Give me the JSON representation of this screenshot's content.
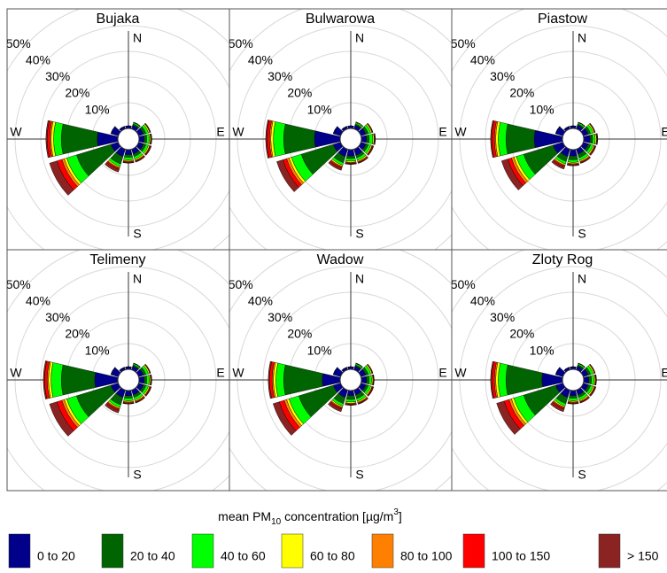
{
  "chart_data": [
    {
      "type": "rose",
      "title": "Bujaka",
      "categories": [
        "N",
        null,
        null,
        "E",
        null,
        null,
        "S",
        null,
        null,
        "W",
        null,
        null
      ],
      "rlim": [
        0,
        50
      ],
      "rticks": [
        {
          "value": 10,
          "label": "10%"
        },
        {
          "value": 20,
          "label": "20%"
        },
        {
          "value": 30,
          "label": "30%"
        },
        {
          "value": 40,
          "label": "40%"
        },
        {
          "value": 50,
          "label": "50%"
        }
      ],
      "series": [
        {
          "name": "0 to 20",
          "color": "#00008b",
          "values": [
            1,
            1.5,
            2,
            2,
            2,
            2,
            2,
            3,
            3,
            8,
            3,
            1
          ]
        },
        {
          "name": "20 to 40",
          "color": "#006400",
          "values": [
            0,
            0.5,
            1,
            1,
            1,
            1,
            1,
            3,
            14,
            14,
            0,
            0
          ]
        },
        {
          "name": "40 to 60",
          "color": "#00ff00",
          "values": [
            0,
            0.5,
            1,
            1,
            1,
            1,
            1,
            1,
            4,
            3,
            0,
            0
          ]
        },
        {
          "name": "60 to 80",
          "color": "#ffff00",
          "values": [
            0,
            0.2,
            0.5,
            0.5,
            0.5,
            0.5,
            0.5,
            0.5,
            1,
            1,
            0,
            0
          ]
        },
        {
          "name": "80 to 100",
          "color": "#ff8000",
          "values": [
            0,
            0,
            0.2,
            0.2,
            0.2,
            0.3,
            0.3,
            0.3,
            1,
            0.5,
            0,
            0
          ]
        },
        {
          "name": "100 to 150",
          "color": "#ff0000",
          "values": [
            0,
            0,
            0.1,
            0.2,
            0.3,
            0.3,
            0.3,
            0.5,
            2,
            1,
            0,
            0
          ]
        },
        {
          "name": "> 150",
          "color": "#8b2323",
          "values": [
            0,
            0,
            0.1,
            0.1,
            0.2,
            0.2,
            0.2,
            1,
            3,
            0.5,
            0,
            0
          ]
        }
      ]
    },
    {
      "type": "rose",
      "title": "Bulwarowa",
      "categories": [
        "N",
        null,
        null,
        "E",
        null,
        null,
        "S",
        null,
        null,
        "W",
        null,
        null
      ],
      "rlim": [
        0,
        50
      ],
      "rticks": [
        {
          "value": 10,
          "label": "10%"
        },
        {
          "value": 20,
          "label": "20%"
        },
        {
          "value": 30,
          "label": "30%"
        },
        {
          "value": 40,
          "label": "40%"
        },
        {
          "value": 50,
          "label": "50%"
        }
      ],
      "series": [
        {
          "name": "0 to 20",
          "color": "#00008b",
          "values": [
            1,
            1.5,
            2,
            2,
            2,
            2.5,
            2.5,
            3,
            3,
            10,
            3,
            1
          ]
        },
        {
          "name": "20 to 40",
          "color": "#006400",
          "values": [
            0,
            0.5,
            1,
            1,
            1,
            1,
            1,
            2.5,
            13,
            12,
            0,
            0
          ]
        },
        {
          "name": "40 to 60",
          "color": "#00ff00",
          "values": [
            0,
            0.5,
            1,
            1.5,
            1,
            1,
            1,
            1,
            4,
            4,
            0,
            0
          ]
        },
        {
          "name": "60 to 80",
          "color": "#ffff00",
          "values": [
            0,
            0.3,
            0.5,
            0.5,
            0.5,
            0.5,
            0.5,
            0.5,
            1,
            1,
            0,
            0
          ]
        },
        {
          "name": "80 to 100",
          "color": "#ff8000",
          "values": [
            0,
            0,
            0.2,
            0.2,
            0.2,
            0.3,
            0.3,
            0.3,
            1,
            0.5,
            0,
            0
          ]
        },
        {
          "name": "100 to 150",
          "color": "#ff0000",
          "values": [
            0,
            0,
            0.1,
            0.2,
            0.3,
            0.3,
            0.3,
            0.5,
            1.5,
            1,
            0,
            0
          ]
        },
        {
          "name": "> 150",
          "color": "#8b2323",
          "values": [
            0,
            0,
            0.1,
            0.1,
            0.2,
            0.2,
            0.2,
            0.8,
            2.5,
            0.5,
            0,
            0
          ]
        }
      ]
    },
    {
      "type": "rose",
      "title": "Piastow",
      "categories": [
        "N",
        null,
        null,
        "E",
        null,
        null,
        "S",
        null,
        null,
        "W",
        null,
        null
      ],
      "rlim": [
        0,
        50
      ],
      "rticks": [
        {
          "value": 10,
          "label": "10%"
        },
        {
          "value": 20,
          "label": "20%"
        },
        {
          "value": 30,
          "label": "30%"
        },
        {
          "value": 40,
          "label": "40%"
        },
        {
          "value": 50,
          "label": "50%"
        }
      ],
      "series": [
        {
          "name": "0 to 20",
          "color": "#00008b",
          "values": [
            1,
            1.5,
            2,
            2.5,
            2,
            2,
            2.5,
            3,
            4,
            11,
            3,
            1
          ]
        },
        {
          "name": "20 to 40",
          "color": "#006400",
          "values": [
            0,
            0.5,
            1,
            1,
            1,
            1.5,
            1.5,
            2,
            12,
            11,
            0,
            0
          ]
        },
        {
          "name": "40 to 60",
          "color": "#00ff00",
          "values": [
            0,
            0.5,
            1,
            1,
            1,
            1,
            1,
            1,
            3,
            3,
            0,
            0
          ]
        },
        {
          "name": "60 to 80",
          "color": "#ffff00",
          "values": [
            0,
            0.2,
            0.5,
            0.5,
            0.5,
            0.5,
            0.5,
            0.5,
            1,
            1,
            0,
            0
          ]
        },
        {
          "name": "80 to 100",
          "color": "#ff8000",
          "values": [
            0,
            0,
            0.2,
            0.2,
            0.2,
            0.3,
            0.3,
            0.3,
            1,
            0.5,
            0,
            0
          ]
        },
        {
          "name": "100 to 150",
          "color": "#ff0000",
          "values": [
            0,
            0,
            0.1,
            0.2,
            0.3,
            0.3,
            0.3,
            0.5,
            1.5,
            1,
            0,
            0
          ]
        },
        {
          "name": "> 150",
          "color": "#8b2323",
          "values": [
            0,
            0,
            0.1,
            0.1,
            0.2,
            0.2,
            0.2,
            0.8,
            2.5,
            0.5,
            0,
            0
          ]
        }
      ]
    },
    {
      "type": "rose",
      "title": "Telimeny",
      "categories": [
        "N",
        null,
        null,
        "E",
        null,
        null,
        "S",
        null,
        null,
        "W",
        null,
        null
      ],
      "rlim": [
        0,
        50
      ],
      "rticks": [
        {
          "value": 10,
          "label": "10%"
        },
        {
          "value": 20,
          "label": "20%"
        },
        {
          "value": 30,
          "label": "30%"
        },
        {
          "value": 40,
          "label": "40%"
        },
        {
          "value": 50,
          "label": "50%"
        }
      ],
      "series": [
        {
          "name": "0 to 20",
          "color": "#00008b",
          "values": [
            1,
            1.5,
            2,
            2,
            2,
            2,
            2,
            3,
            3,
            9,
            3,
            1
          ]
        },
        {
          "name": "20 to 40",
          "color": "#006400",
          "values": [
            0,
            0.5,
            1,
            1,
            1,
            1,
            1,
            3,
            14,
            13,
            0,
            0
          ]
        },
        {
          "name": "40 to 60",
          "color": "#00ff00",
          "values": [
            0,
            0.5,
            1,
            1,
            1,
            1,
            1,
            1,
            4,
            4,
            0,
            0
          ]
        },
        {
          "name": "60 to 80",
          "color": "#ffff00",
          "values": [
            0,
            0.2,
            0.5,
            0.5,
            0.5,
            0.5,
            0.5,
            0.5,
            1,
            1,
            0,
            0
          ]
        },
        {
          "name": "80 to 100",
          "color": "#ff8000",
          "values": [
            0,
            0,
            0.2,
            0.2,
            0.2,
            0.3,
            0.3,
            0.3,
            1,
            0.5,
            0,
            0
          ]
        },
        {
          "name": "100 to 150",
          "color": "#ff0000",
          "values": [
            0,
            0,
            0.1,
            0.2,
            0.3,
            0.3,
            0.3,
            0.5,
            2,
            1,
            0,
            0
          ]
        },
        {
          "name": "> 150",
          "color": "#8b2323",
          "values": [
            0,
            0,
            0.1,
            0.1,
            0.2,
            0.2,
            0.2,
            1,
            3,
            0.5,
            0,
            0
          ]
        }
      ]
    },
    {
      "type": "rose",
      "title": "Wadow",
      "categories": [
        "N",
        null,
        null,
        "E",
        null,
        null,
        "S",
        null,
        null,
        "W",
        null,
        null
      ],
      "rlim": [
        0,
        50
      ],
      "rticks": [
        {
          "value": 10,
          "label": "10%"
        },
        {
          "value": 20,
          "label": "20%"
        },
        {
          "value": 30,
          "label": "30%"
        },
        {
          "value": 40,
          "label": "40%"
        },
        {
          "value": 50,
          "label": "50%"
        }
      ],
      "series": [
        {
          "name": "0 to 20",
          "color": "#00008b",
          "values": [
            1,
            1.5,
            2,
            2,
            2,
            2,
            2,
            3,
            3,
            7,
            3,
            1
          ]
        },
        {
          "name": "20 to 40",
          "color": "#006400",
          "values": [
            0,
            0.5,
            1,
            1,
            1,
            1.5,
            1.5,
            2.5,
            14,
            15,
            0,
            0
          ]
        },
        {
          "name": "40 to 60",
          "color": "#00ff00",
          "values": [
            0,
            0.5,
            1,
            1,
            1,
            1,
            1,
            1,
            4,
            3,
            0,
            0
          ]
        },
        {
          "name": "60 to 80",
          "color": "#ffff00",
          "values": [
            0,
            0.2,
            0.5,
            0.5,
            0.5,
            0.5,
            0.5,
            0.5,
            1,
            1,
            0,
            0
          ]
        },
        {
          "name": "80 to 100",
          "color": "#ff8000",
          "values": [
            0,
            0,
            0.2,
            0.2,
            0.2,
            0.3,
            0.3,
            0.3,
            1,
            0.5,
            0,
            0
          ]
        },
        {
          "name": "100 to 150",
          "color": "#ff0000",
          "values": [
            0,
            0,
            0.1,
            0.2,
            0.3,
            0.3,
            0.3,
            0.5,
            2,
            1,
            0,
            0
          ]
        },
        {
          "name": "> 150",
          "color": "#8b2323",
          "values": [
            0,
            0,
            0.1,
            0.1,
            0.2,
            0.2,
            0.2,
            1,
            2.5,
            0.5,
            0,
            0
          ]
        }
      ]
    },
    {
      "type": "rose",
      "title": "Zloty Rog",
      "categories": [
        "N",
        null,
        null,
        "E",
        null,
        null,
        "S",
        null,
        null,
        "W",
        null,
        null
      ],
      "rlim": [
        0,
        50
      ],
      "rticks": [
        {
          "value": 10,
          "label": "10%"
        },
        {
          "value": 20,
          "label": "20%"
        },
        {
          "value": 30,
          "label": "30%"
        },
        {
          "value": 40,
          "label": "40%"
        },
        {
          "value": 50,
          "label": "50%"
        }
      ],
      "series": [
        {
          "name": "0 to 20",
          "color": "#00008b",
          "values": [
            1,
            1.5,
            2,
            2,
            2,
            2,
            2,
            3,
            3,
            8,
            3,
            1
          ]
        },
        {
          "name": "20 to 40",
          "color": "#006400",
          "values": [
            0,
            0.5,
            1,
            1,
            1,
            1,
            1,
            2.5,
            13,
            14,
            0,
            0
          ]
        },
        {
          "name": "40 to 60",
          "color": "#00ff00",
          "values": [
            0,
            0.5,
            1,
            1,
            1,
            1,
            1,
            1,
            4,
            3,
            0,
            0
          ]
        },
        {
          "name": "60 to 80",
          "color": "#ffff00",
          "values": [
            0,
            0.2,
            0.5,
            0.5,
            0.5,
            0.5,
            0.5,
            0.5,
            1,
            1,
            0,
            0
          ]
        },
        {
          "name": "80 to 100",
          "color": "#ff8000",
          "values": [
            0,
            0,
            0.2,
            0.2,
            0.2,
            0.3,
            0.3,
            0.3,
            1,
            0.5,
            0,
            0
          ]
        },
        {
          "name": "100 to 150",
          "color": "#ff0000",
          "values": [
            0,
            0,
            0.1,
            0.2,
            0.3,
            0.3,
            0.3,
            0.5,
            2,
            1,
            0,
            0
          ]
        },
        {
          "name": "> 150",
          "color": "#8b2323",
          "values": [
            0,
            0,
            0.1,
            0.1,
            0.2,
            0.2,
            0.2,
            1,
            3,
            0.5,
            0,
            0
          ]
        }
      ]
    }
  ],
  "legend_title": [
    "mean PM",
    "10",
    " concentration  [µg/m",
    "3",
    "]"
  ]
}
